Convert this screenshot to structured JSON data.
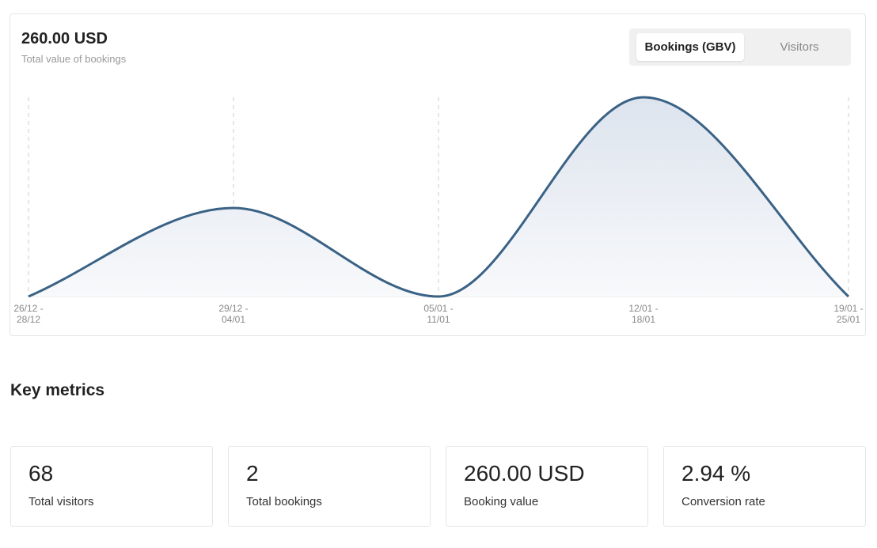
{
  "chart_data": {
    "type": "area-line",
    "title": "260.00 USD",
    "subtitle": "Total value of bookings",
    "categories": [
      "26/12 - 28/12",
      "29/12 - 04/01",
      "05/01 - 11/01",
      "12/01 - 18/01",
      "19/01 - 25/01"
    ],
    "values": [
      0,
      80,
      0,
      180,
      0
    ],
    "color": "#3a6285",
    "ylim": [
      0,
      180
    ]
  },
  "tabs": [
    "Bookings (GBV)",
    "Visitors"
  ],
  "metrics_title": "Key metrics",
  "metrics": [
    {
      "value": "68",
      "label": "Total visitors"
    },
    {
      "value": "2",
      "label": "Total bookings"
    },
    {
      "value": "260.00 USD",
      "label": "Booking value"
    },
    {
      "value": "2.94 %",
      "label": "Conversion rate"
    }
  ]
}
